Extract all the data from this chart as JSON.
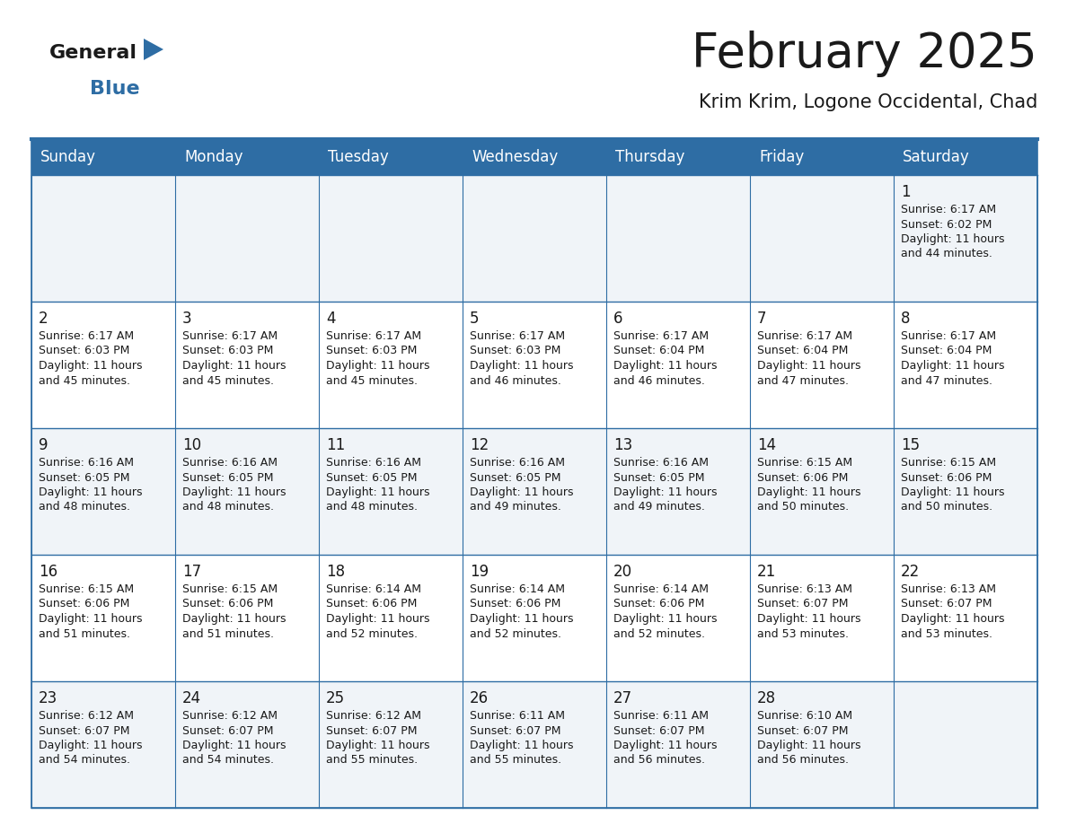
{
  "title": "February 2025",
  "subtitle": "Krim Krim, Logone Occidental, Chad",
  "header_bg": "#2E6DA4",
  "header_text": "#FFFFFF",
  "cell_bg_light": "#F0F4F8",
  "cell_bg_white": "#FFFFFF",
  "border_color": "#2E6DA4",
  "text_color": "#1a1a1a",
  "day_headers": [
    "Sunday",
    "Monday",
    "Tuesday",
    "Wednesday",
    "Thursday",
    "Friday",
    "Saturday"
  ],
  "calendar_data": [
    [
      null,
      null,
      null,
      null,
      null,
      null,
      {
        "day": 1,
        "sunrise": "6:17 AM",
        "sunset": "6:02 PM",
        "daylight": "11 hours\nand 44 minutes."
      }
    ],
    [
      {
        "day": 2,
        "sunrise": "6:17 AM",
        "sunset": "6:03 PM",
        "daylight": "11 hours\nand 45 minutes."
      },
      {
        "day": 3,
        "sunrise": "6:17 AM",
        "sunset": "6:03 PM",
        "daylight": "11 hours\nand 45 minutes."
      },
      {
        "day": 4,
        "sunrise": "6:17 AM",
        "sunset": "6:03 PM",
        "daylight": "11 hours\nand 45 minutes."
      },
      {
        "day": 5,
        "sunrise": "6:17 AM",
        "sunset": "6:03 PM",
        "daylight": "11 hours\nand 46 minutes."
      },
      {
        "day": 6,
        "sunrise": "6:17 AM",
        "sunset": "6:04 PM",
        "daylight": "11 hours\nand 46 minutes."
      },
      {
        "day": 7,
        "sunrise": "6:17 AM",
        "sunset": "6:04 PM",
        "daylight": "11 hours\nand 47 minutes."
      },
      {
        "day": 8,
        "sunrise": "6:17 AM",
        "sunset": "6:04 PM",
        "daylight": "11 hours\nand 47 minutes."
      }
    ],
    [
      {
        "day": 9,
        "sunrise": "6:16 AM",
        "sunset": "6:05 PM",
        "daylight": "11 hours\nand 48 minutes."
      },
      {
        "day": 10,
        "sunrise": "6:16 AM",
        "sunset": "6:05 PM",
        "daylight": "11 hours\nand 48 minutes."
      },
      {
        "day": 11,
        "sunrise": "6:16 AM",
        "sunset": "6:05 PM",
        "daylight": "11 hours\nand 48 minutes."
      },
      {
        "day": 12,
        "sunrise": "6:16 AM",
        "sunset": "6:05 PM",
        "daylight": "11 hours\nand 49 minutes."
      },
      {
        "day": 13,
        "sunrise": "6:16 AM",
        "sunset": "6:05 PM",
        "daylight": "11 hours\nand 49 minutes."
      },
      {
        "day": 14,
        "sunrise": "6:15 AM",
        "sunset": "6:06 PM",
        "daylight": "11 hours\nand 50 minutes."
      },
      {
        "day": 15,
        "sunrise": "6:15 AM",
        "sunset": "6:06 PM",
        "daylight": "11 hours\nand 50 minutes."
      }
    ],
    [
      {
        "day": 16,
        "sunrise": "6:15 AM",
        "sunset": "6:06 PM",
        "daylight": "11 hours\nand 51 minutes."
      },
      {
        "day": 17,
        "sunrise": "6:15 AM",
        "sunset": "6:06 PM",
        "daylight": "11 hours\nand 51 minutes."
      },
      {
        "day": 18,
        "sunrise": "6:14 AM",
        "sunset": "6:06 PM",
        "daylight": "11 hours\nand 52 minutes."
      },
      {
        "day": 19,
        "sunrise": "6:14 AM",
        "sunset": "6:06 PM",
        "daylight": "11 hours\nand 52 minutes."
      },
      {
        "day": 20,
        "sunrise": "6:14 AM",
        "sunset": "6:06 PM",
        "daylight": "11 hours\nand 52 minutes."
      },
      {
        "day": 21,
        "sunrise": "6:13 AM",
        "sunset": "6:07 PM",
        "daylight": "11 hours\nand 53 minutes."
      },
      {
        "day": 22,
        "sunrise": "6:13 AM",
        "sunset": "6:07 PM",
        "daylight": "11 hours\nand 53 minutes."
      }
    ],
    [
      {
        "day": 23,
        "sunrise": "6:12 AM",
        "sunset": "6:07 PM",
        "daylight": "11 hours\nand 54 minutes."
      },
      {
        "day": 24,
        "sunrise": "6:12 AM",
        "sunset": "6:07 PM",
        "daylight": "11 hours\nand 54 minutes."
      },
      {
        "day": 25,
        "sunrise": "6:12 AM",
        "sunset": "6:07 PM",
        "daylight": "11 hours\nand 55 minutes."
      },
      {
        "day": 26,
        "sunrise": "6:11 AM",
        "sunset": "6:07 PM",
        "daylight": "11 hours\nand 55 minutes."
      },
      {
        "day": 27,
        "sunrise": "6:11 AM",
        "sunset": "6:07 PM",
        "daylight": "11 hours\nand 56 minutes."
      },
      {
        "day": 28,
        "sunrise": "6:10 AM",
        "sunset": "6:07 PM",
        "daylight": "11 hours\nand 56 minutes."
      },
      null
    ]
  ],
  "title_fontsize": 38,
  "subtitle_fontsize": 15,
  "header_fontsize": 12,
  "day_num_fontsize": 12,
  "cell_text_fontsize": 9,
  "logo_general_fontsize": 16,
  "logo_blue_fontsize": 16
}
